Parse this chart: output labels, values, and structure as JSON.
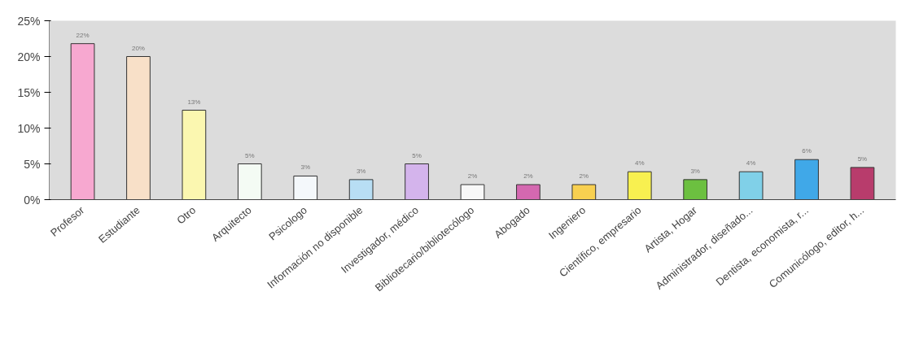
{
  "chart_data": {
    "type": "bar",
    "categories": [
      "Profesor",
      "Estudiante",
      "Otro",
      "Arquitecto",
      "Psicologo",
      "Información no disponible",
      "Investigador, médico",
      "Bibliotecario/bibliotecólogo",
      "Abogado",
      "Ingeniero",
      "Científico, empresario",
      "Artista, Hogar",
      "Administrador, diseñado...",
      "Dentista, economista, r...",
      "Comunicólogo, editor, h..."
    ],
    "values": [
      21.8,
      20.0,
      12.5,
      5.0,
      3.3,
      2.8,
      5.0,
      2.1,
      2.1,
      2.1,
      3.9,
      2.8,
      3.9,
      5.6,
      4.5
    ],
    "colors": [
      "#f7a8d0",
      "#f8e0c8",
      "#fbf7b0",
      "#f4fbf4",
      "#f4f8fb",
      "#b8def4",
      "#d4b4ec",
      "#f8f8f8",
      "#d468b0",
      "#f8d050",
      "#f8f050",
      "#6cc040",
      "#80d0e8",
      "#40a8e8",
      "#b83c6c"
    ],
    "value_labels": [
      "22%",
      "20%",
      "13%",
      "5%",
      "3%",
      "3%",
      "5%",
      "2%",
      "2%",
      "2%",
      "4%",
      "3%",
      "4%",
      "6%",
      "5%"
    ],
    "ylim": [
      0,
      25
    ],
    "yticks": [
      {
        "value": 0,
        "label": "0%"
      },
      {
        "value": 5,
        "label": "5%"
      },
      {
        "value": 10,
        "label": "10%"
      },
      {
        "value": 15,
        "label": "15%"
      },
      {
        "value": 20,
        "label": "20%"
      },
      {
        "value": 25,
        "label": "25%"
      }
    ]
  }
}
